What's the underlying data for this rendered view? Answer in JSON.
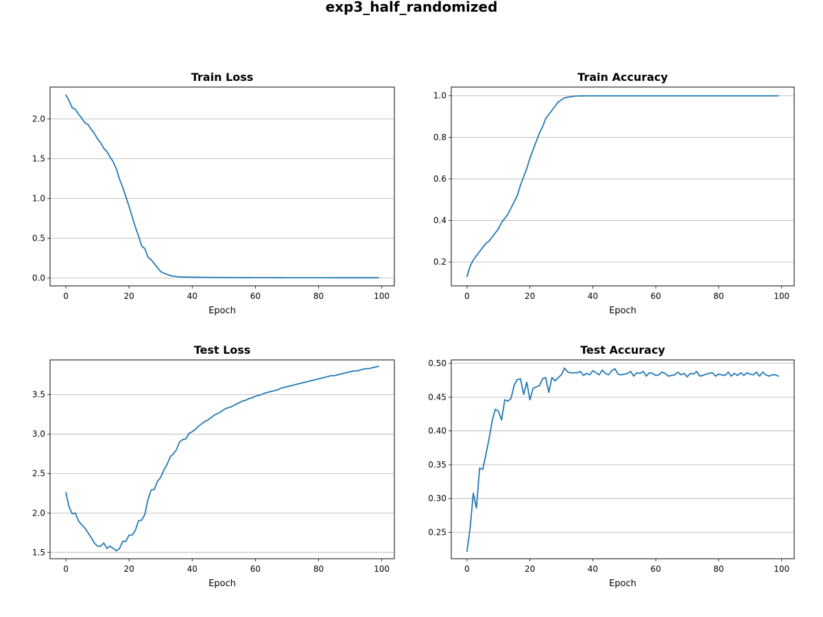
{
  "figure": {
    "title": "exp3_half_randomized"
  },
  "colors": {
    "series": "#1f77b4",
    "grid": "#b0b0b0"
  },
  "chart_data": [
    {
      "type": "line",
      "title": "Train Loss",
      "xlabel": "Epoch",
      "ylabel": "",
      "xlim": [
        -5,
        104
      ],
      "ylim": [
        -0.1,
        2.4
      ],
      "xticks": [
        0,
        20,
        40,
        60,
        80,
        100
      ],
      "yticks": [
        0.0,
        0.5,
        1.0,
        1.5,
        2.0
      ],
      "ytick_labels": [
        "0.0",
        "0.5",
        "1.0",
        "1.5",
        "2.0"
      ],
      "grid": "y",
      "series": [
        {
          "values": [
            2.3,
            2.23,
            2.14,
            2.12,
            2.06,
            2.01,
            1.95,
            1.93,
            1.87,
            1.82,
            1.75,
            1.7,
            1.63,
            1.59,
            1.52,
            1.46,
            1.37,
            1.24,
            1.14,
            1.02,
            0.9,
            0.77,
            0.64,
            0.53,
            0.4,
            0.37,
            0.26,
            0.23,
            0.18,
            0.13,
            0.08,
            0.06,
            0.045,
            0.03,
            0.022,
            0.017,
            0.014,
            0.012,
            0.011,
            0.01,
            0.009,
            0.0085,
            0.008,
            0.0075,
            0.007,
            0.0068,
            0.0065,
            0.006,
            0.0058,
            0.0055,
            0.0053,
            0.005,
            0.0048,
            0.0046,
            0.0044,
            0.0042,
            0.004,
            0.0039,
            0.0038,
            0.0037,
            0.0036,
            0.0035,
            0.0034,
            0.0033,
            0.0032,
            0.0031,
            0.003,
            0.0029,
            0.0028,
            0.0028,
            0.0027,
            0.0026,
            0.0026,
            0.0025,
            0.0025,
            0.0024,
            0.0024,
            0.0023,
            0.0023,
            0.0022,
            0.0022,
            0.0021,
            0.0021,
            0.0021,
            0.002,
            0.002,
            0.002,
            0.0019,
            0.0019,
            0.0019,
            0.0018,
            0.0018,
            0.0018,
            0.0018,
            0.0017,
            0.0017,
            0.0017,
            0.0017,
            0.0016,
            0.0016
          ]
        }
      ]
    },
    {
      "type": "line",
      "title": "Train Accuracy",
      "xlabel": "Epoch",
      "ylabel": "",
      "xlim": [
        -5,
        104
      ],
      "ylim": [
        0.085,
        1.042
      ],
      "xticks": [
        0,
        20,
        40,
        60,
        80,
        100
      ],
      "yticks": [
        0.2,
        0.4,
        0.6,
        0.8,
        1.0
      ],
      "ytick_labels": [
        "0.2",
        "0.4",
        "0.6",
        "0.8",
        "1.0"
      ],
      "grid": "y",
      "series": [
        {
          "values": [
            0.13,
            0.18,
            0.21,
            0.23,
            0.25,
            0.27,
            0.29,
            0.3,
            0.32,
            0.34,
            0.36,
            0.39,
            0.41,
            0.43,
            0.46,
            0.49,
            0.52,
            0.57,
            0.61,
            0.65,
            0.7,
            0.74,
            0.78,
            0.82,
            0.85,
            0.89,
            0.91,
            0.93,
            0.95,
            0.97,
            0.98,
            0.99,
            0.993,
            0.996,
            0.998,
            0.999,
            0.9995,
            0.9998,
            1.0,
            1.0,
            1.0,
            1.0,
            1.0,
            1.0,
            1.0,
            1.0,
            1.0,
            1.0,
            1.0,
            1.0,
            1.0,
            1.0,
            1.0,
            1.0,
            1.0,
            1.0,
            1.0,
            1.0,
            1.0,
            1.0,
            1.0,
            1.0,
            1.0,
            1.0,
            1.0,
            1.0,
            1.0,
            1.0,
            1.0,
            1.0,
            1.0,
            1.0,
            1.0,
            1.0,
            1.0,
            1.0,
            1.0,
            1.0,
            1.0,
            1.0,
            1.0,
            1.0,
            1.0,
            1.0,
            1.0,
            1.0,
            1.0,
            1.0,
            1.0,
            1.0,
            1.0,
            1.0,
            1.0,
            1.0,
            1.0,
            1.0,
            1.0,
            1.0,
            1.0,
            1.0
          ]
        }
      ]
    },
    {
      "type": "line",
      "title": "Test Loss",
      "xlabel": "Epoch",
      "ylabel": "",
      "xlim": [
        -5,
        104
      ],
      "ylim": [
        1.42,
        3.94
      ],
      "xticks": [
        0,
        20,
        40,
        60,
        80,
        100
      ],
      "yticks": [
        1.5,
        2.0,
        2.5,
        3.0,
        3.5
      ],
      "ytick_labels": [
        "1.5",
        "2.0",
        "2.5",
        "3.0",
        "3.5"
      ],
      "grid": "y",
      "series": [
        {
          "values": [
            2.26,
            2.08,
            1.99,
            2.0,
            1.9,
            1.85,
            1.81,
            1.75,
            1.69,
            1.62,
            1.58,
            1.58,
            1.62,
            1.55,
            1.58,
            1.55,
            1.52,
            1.55,
            1.64,
            1.64,
            1.72,
            1.72,
            1.78,
            1.9,
            1.91,
            1.98,
            2.17,
            2.29,
            2.3,
            2.4,
            2.45,
            2.54,
            2.61,
            2.71,
            2.75,
            2.8,
            2.9,
            2.93,
            2.94,
            3.01,
            3.03,
            3.06,
            3.1,
            3.13,
            3.16,
            3.18,
            3.21,
            3.24,
            3.26,
            3.28,
            3.31,
            3.33,
            3.34,
            3.36,
            3.38,
            3.4,
            3.42,
            3.43,
            3.45,
            3.46,
            3.48,
            3.49,
            3.5,
            3.52,
            3.53,
            3.54,
            3.55,
            3.56,
            3.58,
            3.59,
            3.6,
            3.61,
            3.62,
            3.63,
            3.64,
            3.65,
            3.66,
            3.67,
            3.68,
            3.69,
            3.7,
            3.71,
            3.72,
            3.73,
            3.74,
            3.74,
            3.75,
            3.76,
            3.77,
            3.78,
            3.79,
            3.8,
            3.8,
            3.81,
            3.82,
            3.83,
            3.83,
            3.84,
            3.85,
            3.86
          ]
        }
      ]
    },
    {
      "type": "line",
      "title": "Test Accuracy",
      "xlabel": "Epoch",
      "ylabel": "",
      "xlim": [
        -5,
        104
      ],
      "ylim": [
        0.211,
        0.505
      ],
      "xticks": [
        0,
        20,
        40,
        60,
        80,
        100
      ],
      "yticks": [
        0.25,
        0.3,
        0.35,
        0.4,
        0.45,
        0.5
      ],
      "ytick_labels": [
        "0.25",
        "0.30",
        "0.35",
        "0.40",
        "0.45",
        "0.50"
      ],
      "grid": "y",
      "series": [
        {
          "values": [
            0.222,
            0.257,
            0.308,
            0.286,
            0.345,
            0.343,
            0.365,
            0.388,
            0.415,
            0.432,
            0.429,
            0.416,
            0.446,
            0.444,
            0.448,
            0.468,
            0.476,
            0.477,
            0.454,
            0.472,
            0.446,
            0.463,
            0.465,
            0.467,
            0.477,
            0.479,
            0.457,
            0.479,
            0.474,
            0.479,
            0.483,
            0.493,
            0.487,
            0.486,
            0.486,
            0.486,
            0.488,
            0.482,
            0.485,
            0.483,
            0.489,
            0.486,
            0.483,
            0.49,
            0.485,
            0.483,
            0.489,
            0.492,
            0.484,
            0.483,
            0.484,
            0.485,
            0.488,
            0.481,
            0.486,
            0.485,
            0.488,
            0.481,
            0.486,
            0.485,
            0.482,
            0.483,
            0.487,
            0.485,
            0.481,
            0.482,
            0.483,
            0.487,
            0.483,
            0.485,
            0.48,
            0.485,
            0.484,
            0.488,
            0.481,
            0.482,
            0.484,
            0.485,
            0.486,
            0.481,
            0.484,
            0.483,
            0.482,
            0.487,
            0.481,
            0.485,
            0.482,
            0.486,
            0.482,
            0.486,
            0.484,
            0.483,
            0.487,
            0.481,
            0.487,
            0.483,
            0.481,
            0.483,
            0.483,
            0.481
          ]
        }
      ]
    }
  ]
}
